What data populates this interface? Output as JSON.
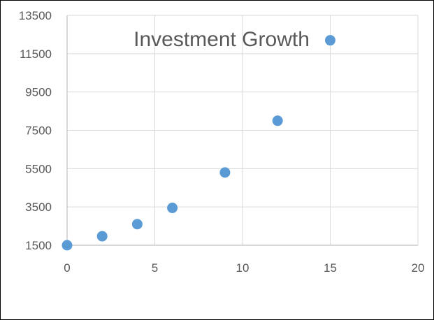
{
  "chart_data": {
    "type": "scatter",
    "title": "Investment Growth",
    "xlabel": "",
    "ylabel": "",
    "xlim": [
      0,
      20
    ],
    "ylim": [
      1500,
      13500
    ],
    "x_ticks": [
      "0",
      "5",
      "10",
      "15",
      "20"
    ],
    "y_ticks": [
      "1500",
      "3500",
      "5500",
      "7500",
      "9500",
      "11500",
      "13500"
    ],
    "grid": true,
    "legend": "none",
    "series": [
      {
        "color": "#5B9BD5",
        "points": [
          {
            "x": 0,
            "y": 1500
          },
          {
            "x": 2,
            "y": 1970
          },
          {
            "x": 4,
            "y": 2600
          },
          {
            "x": 6,
            "y": 3450
          },
          {
            "x": 9,
            "y": 5300
          },
          {
            "x": 12,
            "y": 8000
          },
          {
            "x": 15,
            "y": 12200
          }
        ]
      }
    ],
    "colors": {
      "marker": "#5B9BD5",
      "grid": "#D9D9D9",
      "axis": "#BFBFBF",
      "text": "#595959"
    }
  }
}
